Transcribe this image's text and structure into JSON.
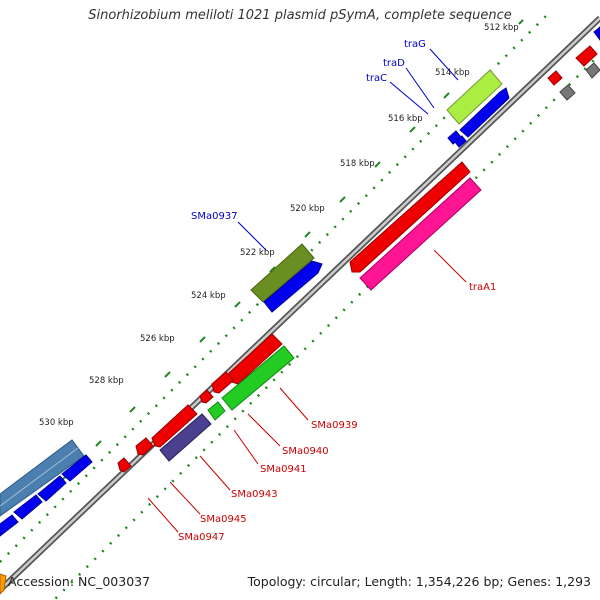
{
  "title": "Sinorhizobium meliloti 1021 plasmid pSymA, complete sequence",
  "footer": {
    "accession": "Accession: NC_003037",
    "summary": "Topology: circular; Length: 1,354,226 bp; Genes: 1,293"
  },
  "ticks": [
    {
      "label": "512 kbp"
    },
    {
      "label": "514 kbp"
    },
    {
      "label": "516 kbp"
    },
    {
      "label": "518 kbp"
    },
    {
      "label": "520 kbp"
    },
    {
      "label": "522 kbp"
    },
    {
      "label": "524 kbp"
    },
    {
      "label": "526 kbp"
    },
    {
      "label": "528 kbp"
    },
    {
      "label": "530 kbp"
    }
  ],
  "gene_labels": [
    {
      "name": "traG",
      "color": "#0000cc"
    },
    {
      "name": "traD",
      "color": "#0000cc"
    },
    {
      "name": "traC",
      "color": "#0000cc"
    },
    {
      "name": "SMa0937",
      "color": "#0000cc"
    },
    {
      "name": "traA1",
      "color": "#cc0000"
    },
    {
      "name": "SMa0939",
      "color": "#cc0000"
    },
    {
      "name": "SMa0940",
      "color": "#cc0000"
    },
    {
      "name": "SMa0941",
      "color": "#cc0000"
    },
    {
      "name": "SMa0943",
      "color": "#cc0000"
    },
    {
      "name": "SMa0945",
      "color": "#cc0000"
    },
    {
      "name": "SMa0947",
      "color": "#cc0000"
    }
  ],
  "colors": {
    "backbone": "#888888",
    "tick_dots": "#228822",
    "cds_forward": "#ee0000",
    "cds_reverse": "#0000ee",
    "trag_feature": "#aaee44",
    "smA0937_feature": "#6b8e23",
    "traA1_feature": "#ff1493",
    "sma0939_feature": "#22cc22",
    "sma0943_feature": "#4b3f8f",
    "left_feature": "#4a7fb0",
    "grey_feature": "#777777",
    "accession_marker": "#ff9900"
  }
}
